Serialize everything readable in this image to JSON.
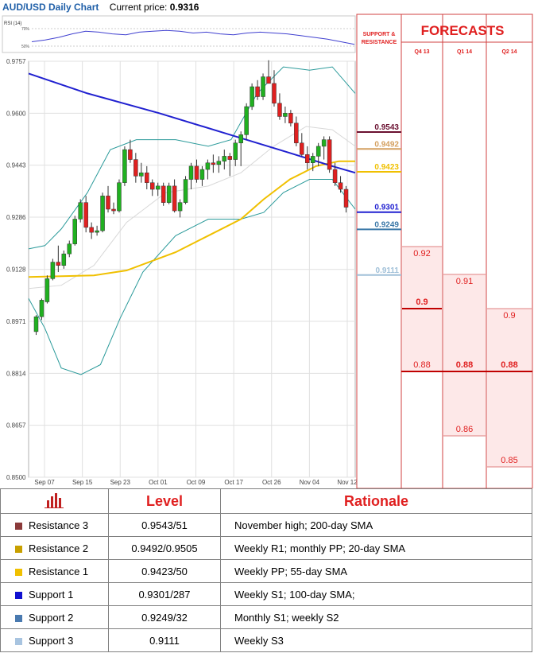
{
  "header": {
    "title": "AUD/USD Daily Chart",
    "price_label": "Current price:",
    "price": "0.9316"
  },
  "colors": {
    "red": "#e02020",
    "blue_sma": "#2020d0",
    "yellow_sma": "#f0c000",
    "bollinger": "#2a9a9a",
    "up_candle": "#20b020",
    "down_candle": "#e02020"
  },
  "chart_data": [
    {
      "type": "candlestick",
      "title": "AUD/USD Daily Chart",
      "y_ticks": [
        0.9757,
        0.96,
        0.9443,
        0.9286,
        0.9128,
        0.8971,
        0.8814,
        0.8657,
        0.85
      ],
      "ylim": [
        0.85,
        0.9757
      ],
      "x_tick_labels": [
        "Sep 07",
        "Sep 15",
        "Sep 23",
        "Oct 01",
        "Oct 09",
        "Oct 17",
        "Oct 26",
        "Nov 04",
        "Nov 12"
      ],
      "grid": true,
      "candles": [
        [
          0.894,
          0.899,
          0.893,
          0.8985
        ],
        [
          0.8985,
          0.904,
          0.8975,
          0.9035
        ],
        [
          0.903,
          0.911,
          0.9025,
          0.91
        ],
        [
          0.91,
          0.916,
          0.9095,
          0.915
        ],
        [
          0.915,
          0.92,
          0.912,
          0.914
        ],
        [
          0.914,
          0.9185,
          0.913,
          0.9175
        ],
        [
          0.9175,
          0.9215,
          0.9165,
          0.9205
        ],
        [
          0.9205,
          0.929,
          0.92,
          0.928
        ],
        [
          0.928,
          0.934,
          0.927,
          0.933
        ],
        [
          0.933,
          0.935,
          0.924,
          0.9255
        ],
        [
          0.9255,
          0.927,
          0.922,
          0.924
        ],
        [
          0.924,
          0.926,
          0.923,
          0.9245
        ],
        [
          0.9245,
          0.936,
          0.924,
          0.935
        ],
        [
          0.935,
          0.938,
          0.93,
          0.931
        ],
        [
          0.931,
          0.933,
          0.9295,
          0.9305
        ],
        [
          0.9305,
          0.94,
          0.93,
          0.939
        ],
        [
          0.939,
          0.95,
          0.938,
          0.949
        ],
        [
          0.949,
          0.952,
          0.945,
          0.946
        ],
        [
          0.946,
          0.948,
          0.939,
          0.941
        ],
        [
          0.941,
          0.945,
          0.939,
          0.942
        ],
        [
          0.942,
          0.944,
          0.937,
          0.939
        ],
        [
          0.939,
          0.94,
          0.935,
          0.937
        ],
        [
          0.937,
          0.939,
          0.935,
          0.938
        ],
        [
          0.938,
          0.939,
          0.932,
          0.933
        ],
        [
          0.933,
          0.939,
          0.9325,
          0.938
        ],
        [
          0.938,
          0.94,
          0.93,
          0.9305
        ],
        [
          0.9305,
          0.934,
          0.9285,
          0.933
        ],
        [
          0.933,
          0.941,
          0.9325,
          0.94
        ],
        [
          0.94,
          0.945,
          0.937,
          0.944
        ],
        [
          0.944,
          0.946,
          0.939,
          0.94
        ],
        [
          0.94,
          0.944,
          0.938,
          0.943
        ],
        [
          0.943,
          0.946,
          0.94,
          0.945
        ],
        [
          0.945,
          0.9475,
          0.942,
          0.9445
        ],
        [
          0.9445,
          0.947,
          0.942,
          0.9455
        ],
        [
          0.9455,
          0.949,
          0.943,
          0.947
        ],
        [
          0.947,
          0.948,
          0.941,
          0.946
        ],
        [
          0.946,
          0.952,
          0.944,
          0.951
        ],
        [
          0.951,
          0.9545,
          0.944,
          0.9535
        ],
        [
          0.9535,
          0.963,
          0.952,
          0.962
        ],
        [
          0.962,
          0.969,
          0.961,
          0.968
        ],
        [
          0.968,
          0.97,
          0.964,
          0.965
        ],
        [
          0.965,
          0.972,
          0.964,
          0.971
        ],
        [
          0.971,
          0.976,
          0.969,
          0.969
        ],
        [
          0.969,
          0.973,
          0.962,
          0.963
        ],
        [
          0.963,
          0.966,
          0.958,
          0.959
        ],
        [
          0.959,
          0.962,
          0.957,
          0.96
        ],
        [
          0.96,
          0.961,
          0.956,
          0.957
        ],
        [
          0.957,
          0.959,
          0.95,
          0.951
        ],
        [
          0.951,
          0.954,
          0.947,
          0.9475
        ],
        [
          0.9475,
          0.95,
          0.943,
          0.945
        ],
        [
          0.945,
          0.948,
          0.9425,
          0.947
        ],
        [
          0.947,
          0.951,
          0.944,
          0.95
        ],
        [
          0.95,
          0.953,
          0.946,
          0.952
        ],
        [
          0.952,
          0.953,
          0.942,
          0.943
        ],
        [
          0.943,
          0.945,
          0.938,
          0.939
        ],
        [
          0.939,
          0.941,
          0.936,
          0.937
        ],
        [
          0.937,
          0.938,
          0.93,
          0.9316
        ]
      ],
      "sma_200": [
        [
          0,
          0.972
        ],
        [
          0.18,
          0.966
        ],
        [
          0.4,
          0.96
        ],
        [
          0.6,
          0.954
        ],
        [
          0.8,
          0.948
        ],
        [
          0.93,
          0.944
        ],
        [
          1.0,
          0.942
        ]
      ],
      "sma_55": [
        [
          0,
          0.9105
        ],
        [
          0.2,
          0.911
        ],
        [
          0.3,
          0.9125
        ],
        [
          0.45,
          0.918
        ],
        [
          0.55,
          0.923
        ],
        [
          0.65,
          0.928
        ],
        [
          0.72,
          0.934
        ],
        [
          0.8,
          0.94
        ],
        [
          0.88,
          0.944
        ],
        [
          0.95,
          0.9455
        ],
        [
          1.0,
          0.9455
        ]
      ],
      "bb_upper": [
        [
          0,
          0.919
        ],
        [
          0.05,
          0.92
        ],
        [
          0.1,
          0.925
        ],
        [
          0.18,
          0.936
        ],
        [
          0.25,
          0.949
        ],
        [
          0.33,
          0.952
        ],
        [
          0.45,
          0.952
        ],
        [
          0.55,
          0.95
        ],
        [
          0.62,
          0.952
        ],
        [
          0.7,
          0.966
        ],
        [
          0.78,
          0.974
        ],
        [
          0.86,
          0.973
        ],
        [
          0.93,
          0.974
        ],
        [
          1.0,
          0.966
        ]
      ],
      "bb_lower": [
        [
          0,
          0.904
        ],
        [
          0.05,
          0.895
        ],
        [
          0.1,
          0.883
        ],
        [
          0.16,
          0.881
        ],
        [
          0.22,
          0.884
        ],
        [
          0.28,
          0.898
        ],
        [
          0.35,
          0.912
        ],
        [
          0.45,
          0.923
        ],
        [
          0.55,
          0.928
        ],
        [
          0.65,
          0.928
        ],
        [
          0.72,
          0.93
        ],
        [
          0.78,
          0.936
        ],
        [
          0.86,
          0.94
        ],
        [
          0.93,
          0.94
        ],
        [
          1.0,
          0.931
        ]
      ],
      "bb_mid": [
        [
          0,
          0.907
        ],
        [
          0.1,
          0.908
        ],
        [
          0.2,
          0.914
        ],
        [
          0.3,
          0.927
        ],
        [
          0.42,
          0.936
        ],
        [
          0.55,
          0.938
        ],
        [
          0.65,
          0.942
        ],
        [
          0.75,
          0.95
        ],
        [
          0.85,
          0.956
        ],
        [
          0.93,
          0.955
        ],
        [
          1.0,
          0.95
        ]
      ]
    },
    {
      "type": "line",
      "title": "RSI (14)",
      "y_ticks": [
        "70%",
        "50%"
      ],
      "values": [
        55,
        57,
        60,
        64,
        67,
        66,
        64,
        63,
        66,
        67,
        68,
        67,
        65,
        66,
        64,
        63,
        65,
        66,
        65,
        64,
        62,
        60,
        58,
        55,
        52
      ]
    },
    {
      "type": "table",
      "title": "FORECASTS",
      "support_resistance_header": "SUPPORT & RESISTANCE",
      "columns": [
        "Q4 13",
        "Q1 14",
        "Q2 14"
      ],
      "sr_levels": [
        {
          "value": "0.9543",
          "color": "#6a1030"
        },
        {
          "value": "0.9492",
          "color": "#d4a060"
        },
        {
          "value": "0.9423",
          "color": "#f0c000"
        },
        {
          "value": "0.9301",
          "color": "#2020d0"
        },
        {
          "value": "0.9249",
          "color": "#3a78a8"
        },
        {
          "value": "0.9111",
          "color": "#a0c0d8"
        }
      ],
      "forecasts": [
        {
          "high": "0.92",
          "mid": "0.9",
          "low": "0.88"
        },
        {
          "high": "0.91",
          "mid": "0.88",
          "low": "0.86"
        },
        {
          "high": "0.9",
          "mid": "0.88",
          "low": "0.85"
        }
      ]
    }
  ],
  "levels_table": {
    "headers": [
      "Level",
      "Rationale"
    ],
    "rows": [
      {
        "name": "Resistance 3",
        "color": "#8b3a3a",
        "level": "0.9543/51",
        "rationale": "November high; 200-day SMA"
      },
      {
        "name": "Resistance 2",
        "color": "#c8a000",
        "level": "0.9492/0.9505",
        "rationale": "Weekly R1; monthly PP; 20-day SMA"
      },
      {
        "name": "Resistance 1",
        "color": "#f0c000",
        "level": "0.9423/50",
        "rationale": "Weekly PP; 55-day SMA"
      },
      {
        "name": "Support 1",
        "color": "#1010d0",
        "level": "0.9301/287",
        "rationale": "Weekly S1; 100-day SMA;"
      },
      {
        "name": "Support 2",
        "color": "#4a7ab0",
        "level": "0.9249/32",
        "rationale": "Monthly S1; weekly S2"
      },
      {
        "name": "Support 3",
        "color": "#a8c4e0",
        "level": "0.9111",
        "rationale": "Weekly S3"
      }
    ]
  }
}
